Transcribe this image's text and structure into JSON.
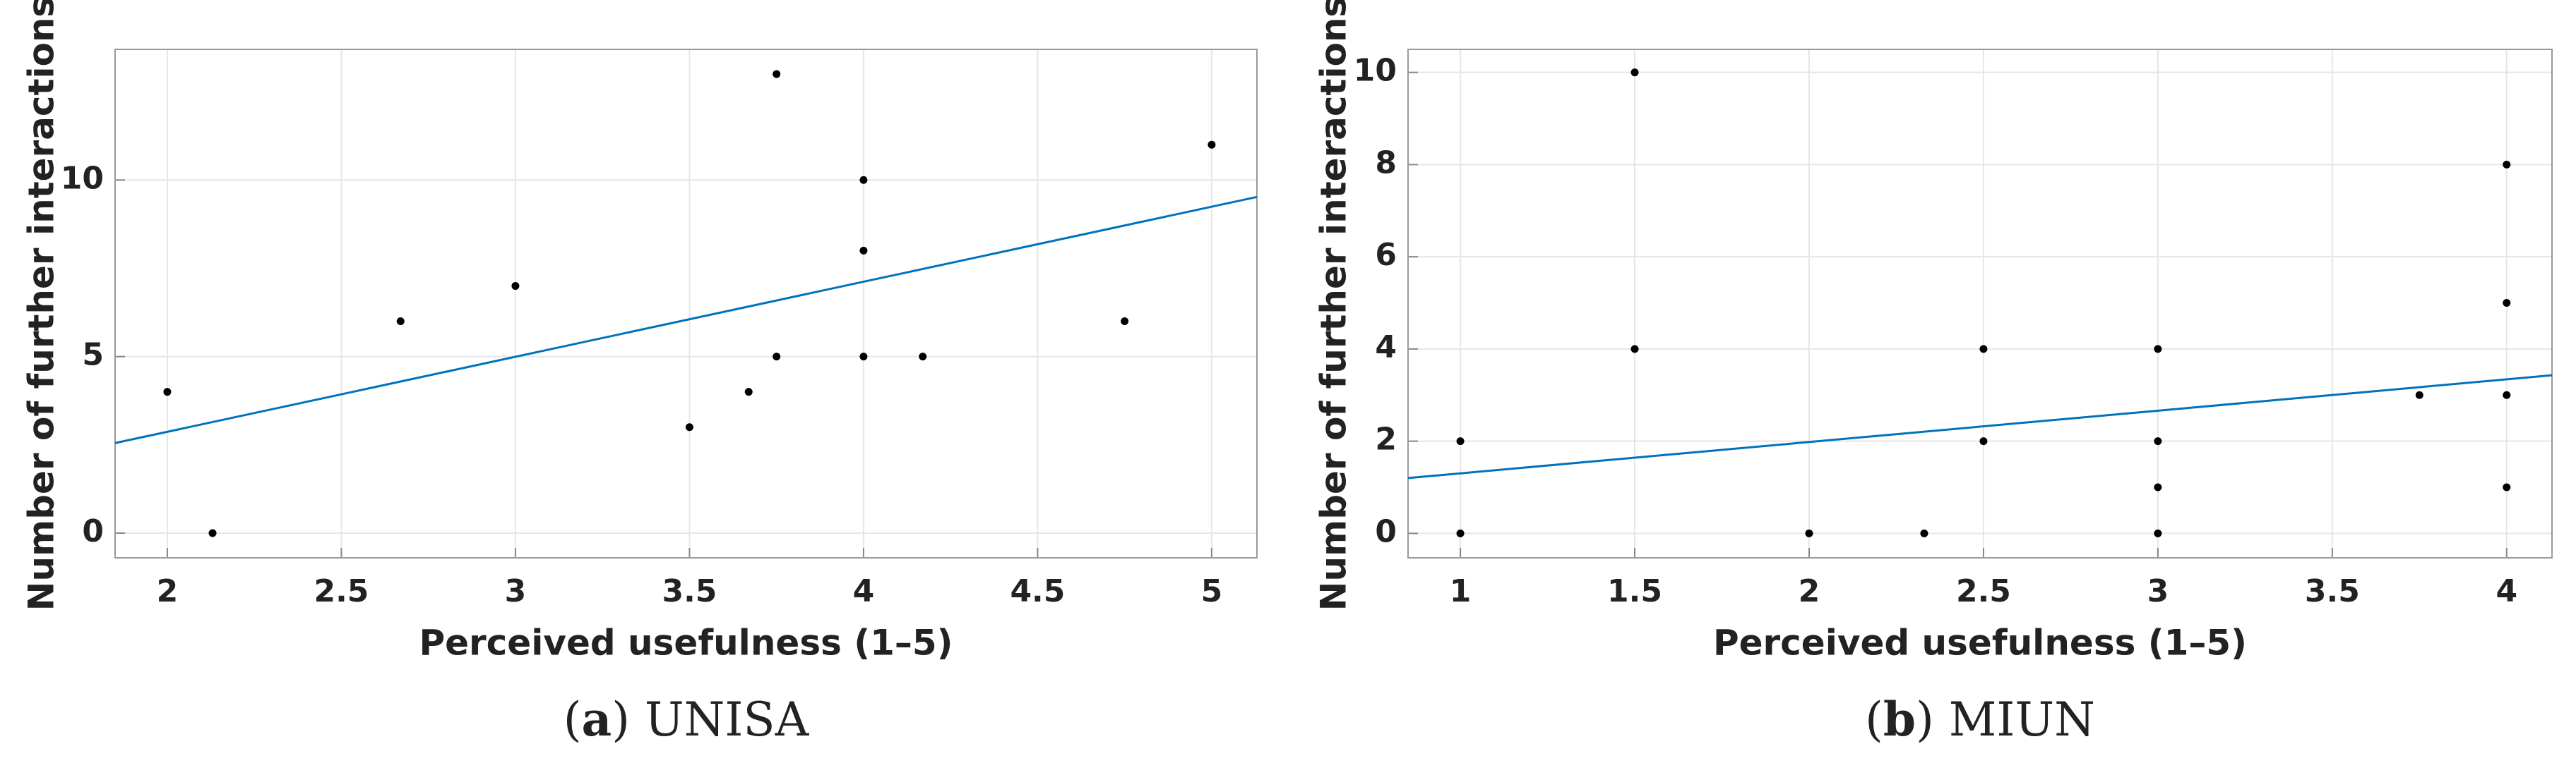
{
  "chart_data": [
    {
      "type": "scatter",
      "xlabel": "Perceived usefulness (1–5)",
      "ylabel": "Number of further interactions",
      "caption_parts": [
        "(",
        "a",
        ") UNISA"
      ],
      "x": [
        2,
        2.13,
        2.67,
        3,
        3.5,
        3.67,
        3.75,
        3.75,
        4,
        4,
        4,
        4.17,
        4.75,
        5
      ],
      "values": [
        4,
        0,
        6,
        7,
        3,
        4,
        13,
        5,
        10,
        8,
        5,
        5,
        6,
        11
      ],
      "color": "#000000",
      "fit": {
        "x": [
          1.85,
          5.13
        ],
        "values": [
          2.55,
          9.52
        ],
        "color": "#0072bd"
      },
      "xlim": [
        1.85,
        5.13
      ],
      "ylim": [
        -0.7,
        13.7
      ],
      "xticks": [
        2,
        2.5,
        3,
        3.5,
        4,
        4.5,
        5
      ],
      "yticks": [
        0,
        5,
        10
      ],
      "grid": true
    },
    {
      "type": "scatter",
      "xlabel": "Perceived usefulness (1–5)",
      "ylabel": "Number of further interactions",
      "caption_parts": [
        "(",
        "b",
        ") MIUN"
      ],
      "x": [
        1,
        1,
        1.5,
        1.5,
        2,
        2.33,
        2.5,
        2.5,
        3,
        3,
        3,
        3,
        3.75,
        4,
        4,
        4,
        4
      ],
      "values": [
        2,
        0,
        10,
        4,
        0,
        0,
        4,
        2,
        4,
        2,
        1,
        0,
        3,
        8,
        5,
        3,
        1
      ],
      "color": "#000000",
      "fit": {
        "x": [
          0.85,
          4.13
        ],
        "values": [
          1.2,
          3.43
        ],
        "color": "#0072bd"
      },
      "xlim": [
        0.85,
        4.13
      ],
      "ylim": [
        -0.53,
        10.5
      ],
      "xticks": [
        1,
        1.5,
        2,
        2.5,
        3,
        3.5,
        4
      ],
      "yticks": [
        0,
        2,
        4,
        6,
        8,
        10
      ],
      "grid": true
    }
  ]
}
